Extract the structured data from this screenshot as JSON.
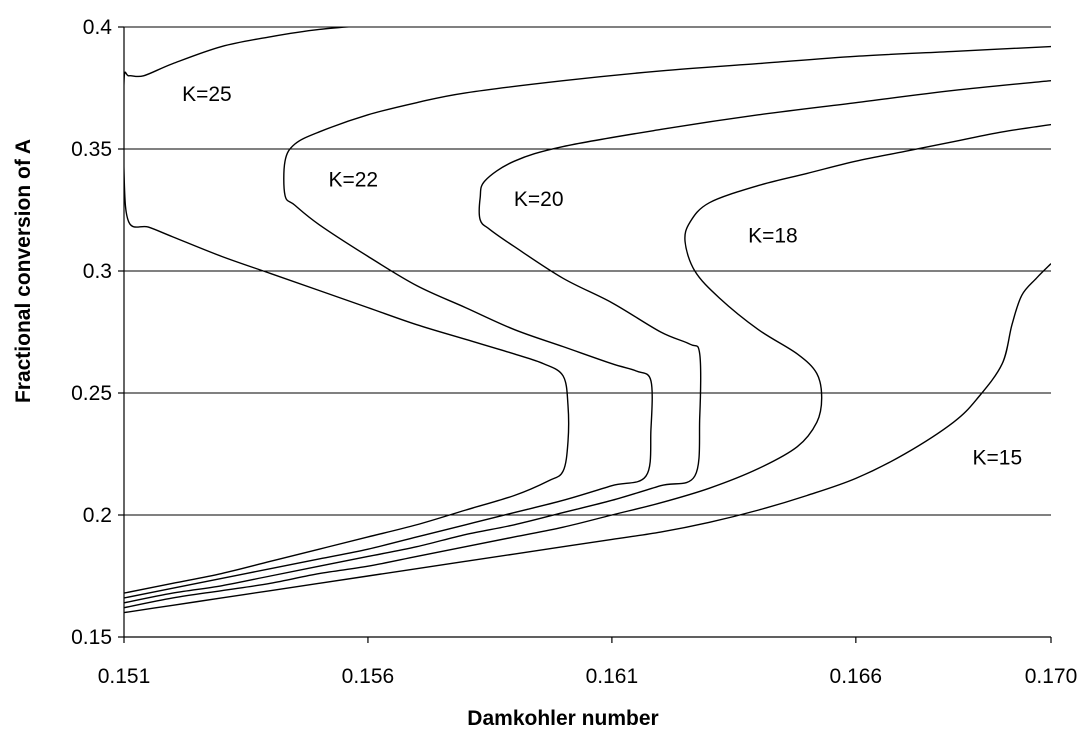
{
  "chart_data": {
    "type": "line",
    "title": "",
    "xlabel": "Damkohler number",
    "ylabel": "Fractional conversion of A",
    "xlim": [
      0.151,
      0.17
    ],
    "ylim": [
      0.15,
      0.4
    ],
    "x_ticks": [
      0.151,
      0.156,
      0.161,
      0.166,
      0.17
    ],
    "x_tick_labels": [
      "0.151",
      "0.156",
      "0.161",
      "0.166",
      "0.170"
    ],
    "y_ticks": [
      0.15,
      0.2,
      0.25,
      0.3,
      0.35,
      0.4
    ],
    "y_tick_labels": [
      "0.15",
      "0.2",
      "0.25",
      "0.3",
      "0.35",
      "0.4"
    ],
    "grid": "horizontal",
    "legend": "none",
    "series": [
      {
        "name": "K=25",
        "x": [
          0.151,
          0.152,
          0.153,
          0.154,
          0.155,
          0.156,
          0.157,
          0.158,
          0.159,
          0.1597,
          0.16,
          0.1601,
          0.1601,
          0.16,
          0.1596,
          0.159,
          0.158,
          0.157,
          0.156,
          0.155,
          0.154,
          0.153,
          0.152,
          0.1515,
          0.1511,
          0.151,
          0.151,
          0.1511,
          0.1514,
          0.152,
          0.153,
          0.154,
          0.155,
          0.1562
        ],
        "y": [
          0.168,
          0.172,
          0.176,
          0.181,
          0.186,
          0.191,
          0.196,
          0.202,
          0.208,
          0.214,
          0.218,
          0.23,
          0.245,
          0.257,
          0.262,
          0.266,
          0.272,
          0.278,
          0.285,
          0.292,
          0.299,
          0.306,
          0.314,
          0.318,
          0.32,
          0.34,
          0.378,
          0.38,
          0.38,
          0.385,
          0.392,
          0.396,
          0.399,
          0.401
        ]
      },
      {
        "name": "K=22",
        "x": [
          0.151,
          0.152,
          0.153,
          0.154,
          0.155,
          0.156,
          0.157,
          0.158,
          0.159,
          0.16,
          0.161,
          0.1617,
          0.1618,
          0.1618,
          0.1615,
          0.161,
          0.16,
          0.159,
          0.158,
          0.157,
          0.156,
          0.155,
          0.1545,
          0.1543,
          0.1543,
          0.1545,
          0.155,
          0.156,
          0.157,
          0.158,
          0.16,
          0.162,
          0.164,
          0.166,
          0.168,
          0.17
        ],
        "y": [
          0.166,
          0.17,
          0.174,
          0.178,
          0.182,
          0.186,
          0.191,
          0.196,
          0.201,
          0.206,
          0.212,
          0.216,
          0.235,
          0.255,
          0.259,
          0.262,
          0.269,
          0.276,
          0.285,
          0.294,
          0.306,
          0.319,
          0.327,
          0.331,
          0.345,
          0.352,
          0.357,
          0.364,
          0.369,
          0.373,
          0.378,
          0.382,
          0.385,
          0.388,
          0.39,
          0.392
        ]
      },
      {
        "name": "K=20",
        "x": [
          0.151,
          0.152,
          0.153,
          0.154,
          0.155,
          0.156,
          0.157,
          0.158,
          0.159,
          0.16,
          0.161,
          0.162,
          0.1627,
          0.1628,
          0.1628,
          0.1626,
          0.162,
          0.161,
          0.16,
          0.159,
          0.1585,
          0.1583,
          0.1583,
          0.1584,
          0.159,
          0.16,
          0.162,
          0.164,
          0.166,
          0.168,
          0.17
        ],
        "y": [
          0.164,
          0.168,
          0.171,
          0.175,
          0.179,
          0.183,
          0.187,
          0.192,
          0.196,
          0.201,
          0.206,
          0.212,
          0.216,
          0.24,
          0.266,
          0.27,
          0.275,
          0.287,
          0.297,
          0.31,
          0.317,
          0.321,
          0.33,
          0.337,
          0.345,
          0.351,
          0.358,
          0.364,
          0.369,
          0.374,
          0.378
        ]
      },
      {
        "name": "K=18",
        "x": [
          0.151,
          0.152,
          0.153,
          0.154,
          0.155,
          0.156,
          0.157,
          0.158,
          0.159,
          0.16,
          0.161,
          0.162,
          0.163,
          0.164,
          0.1648,
          0.1652,
          0.1653,
          0.1652,
          0.1648,
          0.164,
          0.1632,
          0.1627,
          0.1625,
          0.1626,
          0.163,
          0.164,
          0.165,
          0.166,
          0.167,
          0.168,
          0.169,
          0.17
        ],
        "y": [
          0.162,
          0.166,
          0.169,
          0.172,
          0.176,
          0.179,
          0.183,
          0.187,
          0.191,
          0.195,
          0.2,
          0.205,
          0.211,
          0.219,
          0.228,
          0.238,
          0.248,
          0.258,
          0.266,
          0.276,
          0.289,
          0.3,
          0.312,
          0.32,
          0.328,
          0.335,
          0.34,
          0.345,
          0.349,
          0.353,
          0.357,
          0.36
        ]
      },
      {
        "name": "K=15",
        "x": [
          0.151,
          0.152,
          0.153,
          0.154,
          0.155,
          0.156,
          0.157,
          0.158,
          0.159,
          0.16,
          0.161,
          0.162,
          0.163,
          0.164,
          0.165,
          0.166,
          0.167,
          0.168,
          0.1685,
          0.169,
          0.1692,
          0.1694,
          0.1697,
          0.17
        ],
        "y": [
          0.16,
          0.163,
          0.166,
          0.169,
          0.172,
          0.175,
          0.178,
          0.181,
          0.184,
          0.187,
          0.19,
          0.193,
          0.197,
          0.202,
          0.208,
          0.215,
          0.225,
          0.238,
          0.248,
          0.262,
          0.278,
          0.29,
          0.297,
          0.303
        ]
      }
    ],
    "annotations": [
      {
        "text": "K=25",
        "x": 0.1527,
        "y": 0.3725
      },
      {
        "text": "K=22",
        "x": 0.1557,
        "y": 0.3375
      },
      {
        "text": "K=20",
        "x": 0.1595,
        "y": 0.3295
      },
      {
        "text": "K=18",
        "x": 0.1643,
        "y": 0.3145
      },
      {
        "text": "K=15",
        "x": 0.1689,
        "y": 0.2235
      }
    ]
  }
}
